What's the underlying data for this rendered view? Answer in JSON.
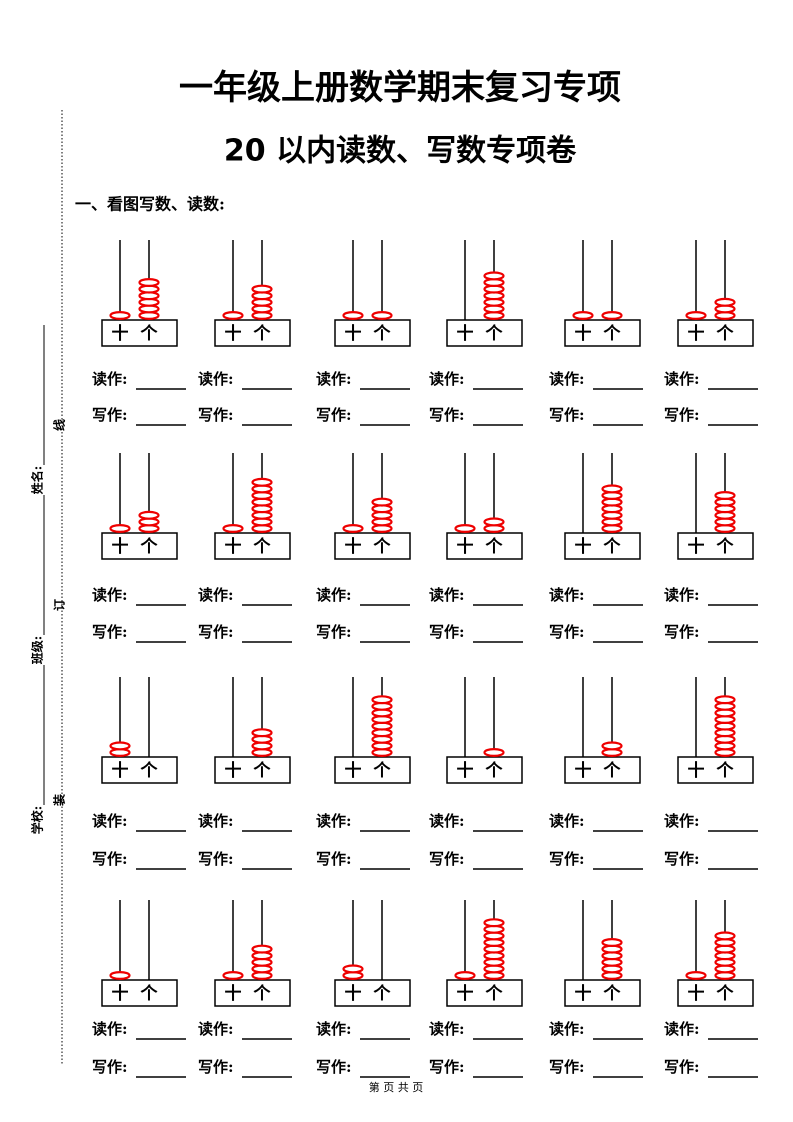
{
  "header": {
    "title": "一年级上册数学期末复习专项",
    "subtitle": "20 以内读数、写数专项卷"
  },
  "section": {
    "heading": "一、看图写数、读数:"
  },
  "labels": {
    "tens": "十",
    "ones": "个",
    "read": "读作:",
    "write": "写作:"
  },
  "abacuses": [
    {
      "tens": 1,
      "ones": 6
    },
    {
      "tens": 1,
      "ones": 5
    },
    {
      "tens": 1,
      "ones": 1
    },
    {
      "tens": 0,
      "ones": 7
    },
    {
      "tens": 1,
      "ones": 1
    },
    {
      "tens": 1,
      "ones": 3
    },
    {
      "tens": 1,
      "ones": 3
    },
    {
      "tens": 1,
      "ones": 8
    },
    {
      "tens": 1,
      "ones": 5
    },
    {
      "tens": 1,
      "ones": 2
    },
    {
      "tens": 0,
      "ones": 7
    },
    {
      "tens": 0,
      "ones": 6
    },
    {
      "tens": 2,
      "ones": 0
    },
    {
      "tens": 0,
      "ones": 4
    },
    {
      "tens": 0,
      "ones": 9
    },
    {
      "tens": 0,
      "ones": 1
    },
    {
      "tens": 0,
      "ones": 2
    },
    {
      "tens": 0,
      "ones": 9
    },
    {
      "tens": 1,
      "ones": 0
    },
    {
      "tens": 1,
      "ones": 5
    },
    {
      "tens": 2,
      "ones": 0
    },
    {
      "tens": 1,
      "ones": 9
    },
    {
      "tens": 0,
      "ones": 6
    },
    {
      "tens": 1,
      "ones": 7
    }
  ],
  "binding": {
    "school": "学校:",
    "class": "班级:",
    "name": "姓名:",
    "line": "线",
    "bind": "订",
    "fold": "装"
  },
  "footer": "第 页 共 页"
}
